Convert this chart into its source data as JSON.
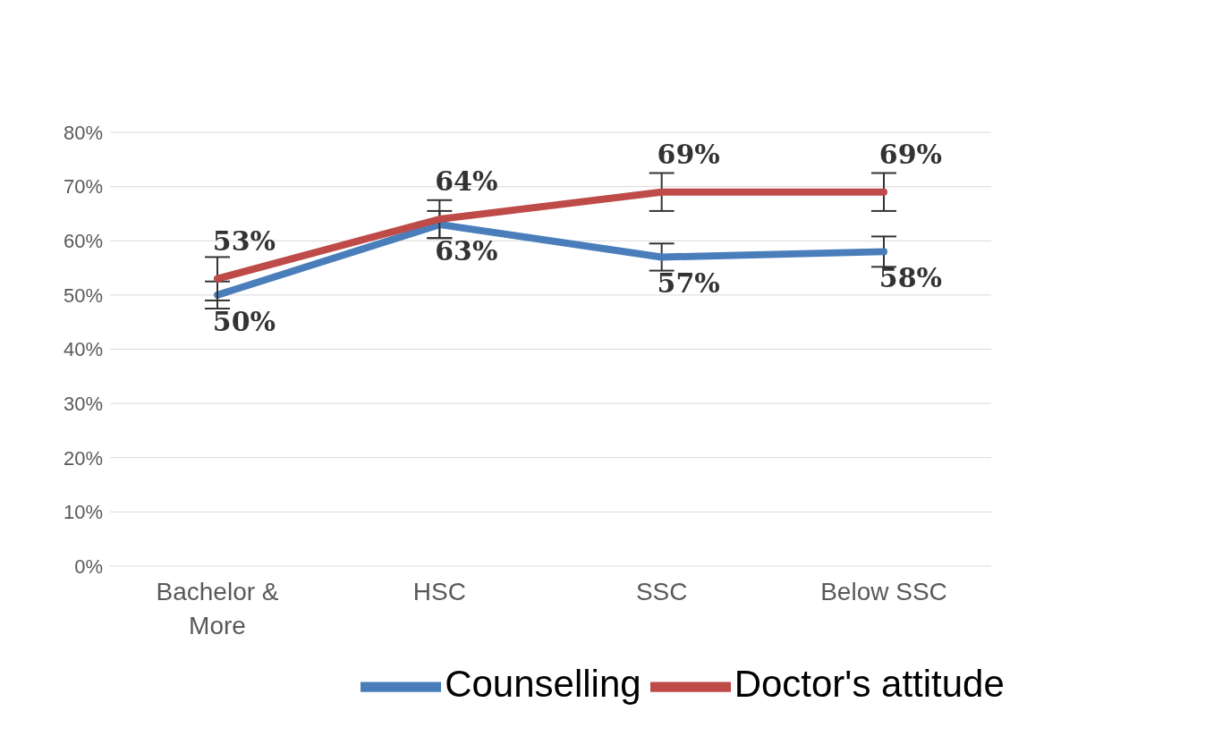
{
  "chart_data": {
    "type": "line",
    "categories": [
      "Bachelor & More",
      "HSC",
      "SSC",
      "Below SSC"
    ],
    "series": [
      {
        "name": "Counselling",
        "color": "#4a7ebb",
        "values": [
          50,
          63,
          57,
          58
        ],
        "errors": [
          2.5,
          2.5,
          2.5,
          2.8
        ],
        "value_labels": [
          "50%",
          "63%",
          "57%",
          "58%"
        ]
      },
      {
        "name": "Doctor's attitude",
        "color": "#be4b48",
        "values": [
          53,
          64,
          69,
          69
        ],
        "errors": [
          4,
          3.5,
          3.5,
          3.5
        ],
        "value_labels": [
          "53%",
          "64%",
          "69%",
          "69%"
        ]
      }
    ],
    "ylim": [
      0,
      80
    ],
    "yticks": [
      {
        "value": 0,
        "label": "0%"
      },
      {
        "value": 10,
        "label": "10%"
      },
      {
        "value": 20,
        "label": "20%"
      },
      {
        "value": 30,
        "label": "30%"
      },
      {
        "value": 40,
        "label": "40%"
      },
      {
        "value": 50,
        "label": "50%"
      },
      {
        "value": 60,
        "label": "60%"
      },
      {
        "value": 70,
        "label": "70%"
      },
      {
        "value": 80,
        "label": "80%"
      }
    ],
    "grid": "y",
    "legend": "bottom",
    "marker": "none",
    "line_style": "solid"
  }
}
